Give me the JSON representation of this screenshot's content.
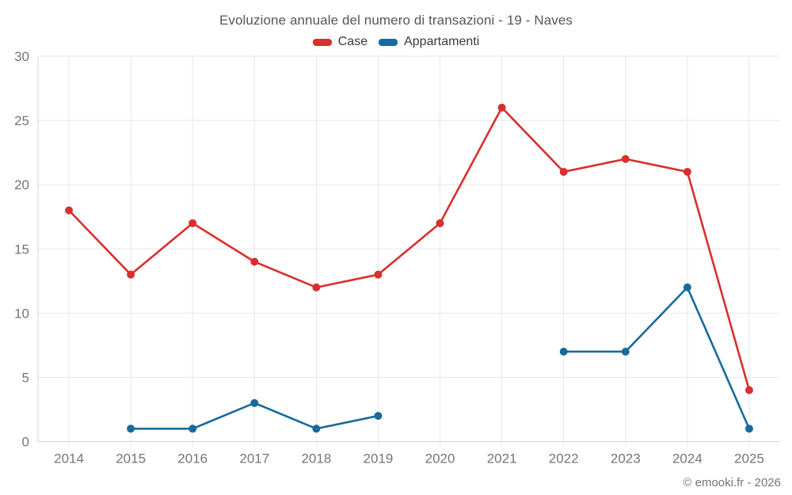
{
  "title": "Evoluzione annuale del numero di transazioni - 19 - Naves",
  "footer": "© emooki.fr - 2026",
  "legend": [
    {
      "label": "Case",
      "color": "#d7302f"
    },
    {
      "label": "Appartamenti",
      "color": "#186a9c"
    }
  ],
  "colors": {
    "case_red": "#d7302f",
    "appartamenti_blue": "#186a9c",
    "grid": "#e7e7e7",
    "axis_border": "#d4d4d4",
    "tick_text": "#757575"
  },
  "chart_data": {
    "type": "line",
    "title": "Evoluzione annuale del numero di transazioni - 19 - Naves",
    "categories": [
      "2014",
      "2015",
      "2016",
      "2017",
      "2018",
      "2019",
      "2020",
      "2021",
      "2022",
      "2023",
      "2024",
      "2025"
    ],
    "series": [
      {
        "name": "Case",
        "color": "#d7302f",
        "values": [
          18,
          13,
          17,
          14,
          12,
          13,
          17,
          26,
          21,
          22,
          21,
          4
        ]
      },
      {
        "name": "Appartamenti",
        "color": "#186a9c",
        "values": [
          null,
          1,
          1,
          3,
          1,
          2,
          null,
          null,
          7,
          7,
          12,
          1
        ]
      }
    ],
    "xlabel": "",
    "ylabel": "",
    "ylim": [
      0,
      30
    ],
    "yticks": [
      0,
      5,
      10,
      15,
      20,
      25,
      30
    ],
    "grid": true,
    "legend_position": "top"
  }
}
